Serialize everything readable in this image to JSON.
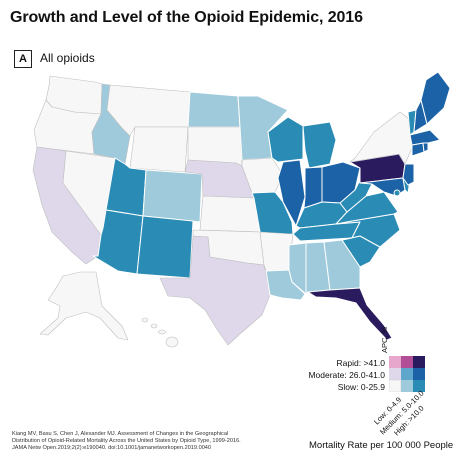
{
  "title": "Growth and Level of the Opioid Epidemic, 2016",
  "panel": {
    "badge": "A",
    "label": "All opioids"
  },
  "colors": {
    "slow_low": "#f7f7f7",
    "slow_med": "#9ecadb",
    "slow_high": "#2a8cb5",
    "mod_low": "#ded8ea",
    "mod_med": "#5ea6cc",
    "mod_high": "#1c62a6",
    "rapid_low": "#e7a6cb",
    "rapid_med": "#b14e96",
    "rapid_high": "#2a1b5e"
  },
  "legend": {
    "axis_label": "APC, %",
    "rows": [
      "Rapid: >41.0",
      "Moderate: 26.0-41.0",
      "Slow: 0-25.9"
    ],
    "columns": [
      "Low: 0-4.9",
      "Medium: 5.0-10.0",
      "High: >10.0"
    ],
    "title": "Mortality Rate per 100 000 People"
  },
  "citation": [
    "Kiang MV, Basu S, Chen J, Alexander MJ. Assessment of Changes in the Geographical",
    "Distribution of Opioid-Related Mortality Across the United States by Opioid Type, 1999-2016.",
    "JAMA Netw Open.2019;2(2):e190040. doi:10.1001/jamanetworkopen.2019.0040"
  ],
  "states": {
    "WA": "slow_low",
    "OR": "slow_low",
    "CA": "mod_low",
    "NV": "slow_low",
    "ID": "slow_med",
    "MT": "slow_low",
    "WY": "slow_low",
    "UT": "slow_high",
    "AZ": "slow_high",
    "CO": "slow_med",
    "NM": "slow_high",
    "ND": "slow_med",
    "SD": "slow_low",
    "NE": "mod_low",
    "KS": "slow_low",
    "OK": "slow_low",
    "TX": "mod_low",
    "MN": "slow_med",
    "IA": "slow_low",
    "MO": "slow_high",
    "AR": "slow_low",
    "LA": "slow_med",
    "WI": "slow_high",
    "IL": "mod_high",
    "MI": "slow_high",
    "IN": "mod_high",
    "OH": "mod_high",
    "KY": "slow_high",
    "TN": "slow_high",
    "MS": "slow_med",
    "AL": "slow_med",
    "GA": "slow_med",
    "FL": "rapid_high",
    "SC": "slow_high",
    "NC": "slow_high",
    "VA": "slow_high",
    "WV": "slow_high",
    "PA": "rapid_high",
    "NY": "slow_low",
    "ME": "mod_high",
    "VT": "slow_high",
    "NH": "mod_high",
    "MA": "mod_high",
    "CT": "mod_high",
    "RI": "mod_high",
    "NJ": "mod_high",
    "DE": "slow_high",
    "MD": "mod_high",
    "DC": "slow_high",
    "AK": "slow_low",
    "HI": "slow_low"
  }
}
